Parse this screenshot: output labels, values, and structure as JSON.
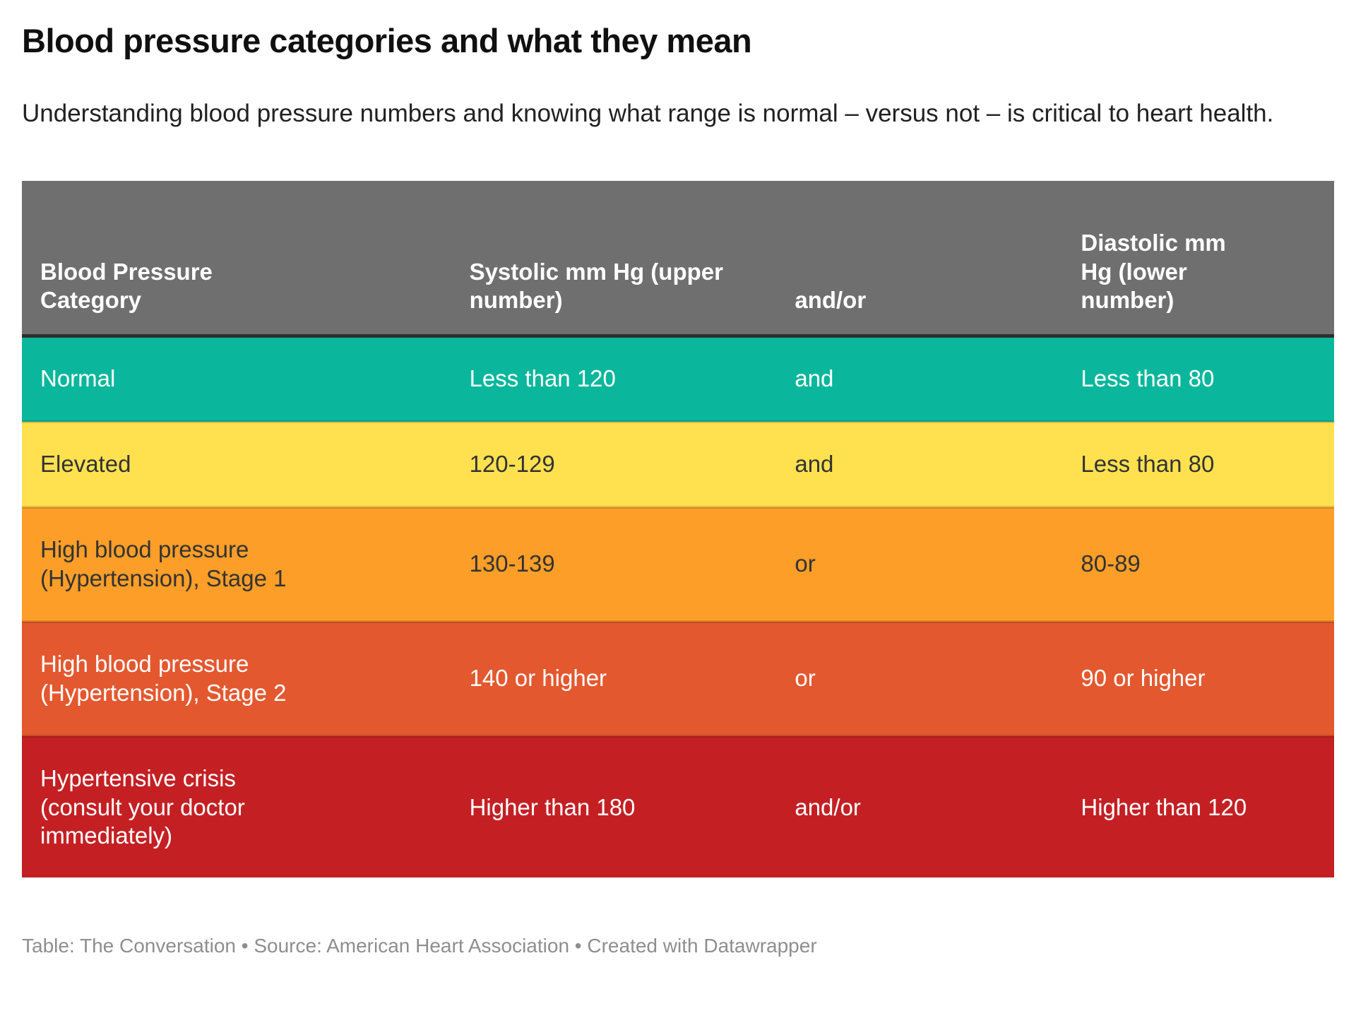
{
  "chart_data": {
    "type": "table",
    "title": "Blood pressure categories and what they mean",
    "subtitle": "Understanding blood pressure numbers and knowing what range is normal – versus not – is critical to heart health.",
    "columns": [
      "Blood Pressure Category",
      "Systolic mm Hg (upper number)",
      "and/or",
      "Diastolic mm Hg (lower number)"
    ],
    "rows": [
      {
        "category": "Normal",
        "systolic": "Less than 120",
        "connector": "and",
        "diastolic": "Less than 80",
        "row_color": "#0bb79c",
        "text_color": "#ffffff"
      },
      {
        "category": "Elevated",
        "systolic": "120-129",
        "connector": "and",
        "diastolic": "Less than 80",
        "row_color": "#ffe150",
        "text_color": "#333333"
      },
      {
        "category": "High blood pressure (Hypertension), Stage 1",
        "systolic": "130-139",
        "connector": "or",
        "diastolic": "80-89",
        "row_color": "#fd9e28",
        "text_color": "#333333"
      },
      {
        "category": "High blood pressure (Hypertension), Stage 2",
        "systolic": "140 or higher",
        "connector": "or",
        "diastolic": "90 or higher",
        "row_color": "#e4582f",
        "text_color": "#ffffff"
      },
      {
        "category": "Hypertensive crisis (consult your doctor immediately)",
        "systolic": "Higher than 180",
        "connector": "and/or",
        "diastolic": "Higher than 120",
        "row_color": "#c42024",
        "text_color": "#ffffff"
      }
    ],
    "legend_position": "none",
    "grid": "off"
  },
  "colors": {
    "header_bg": "#6f6f6f",
    "header_text": "#ffffff",
    "header_border": "#2e2e2e"
  },
  "footer": {
    "credit_line": "Table: The Conversation • Source: American Heart Association • Created with Datawrapper"
  }
}
